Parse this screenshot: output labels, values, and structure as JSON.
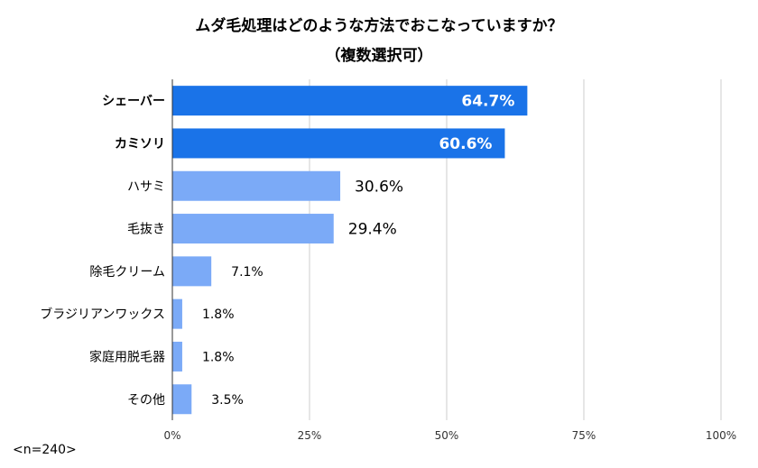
{
  "title": "ムダ毛処理はどのような方法でおこなっていますか？",
  "subtitle": "（複数選択可）",
  "note": "<n=240>",
  "chart_data": {
    "type": "bar",
    "orientation": "horizontal",
    "title": "ムダ毛処理はどのような方法でおこなっていますか？",
    "subtitle": "（複数選択可）",
    "categories": [
      "シェーバー",
      "カミソリ",
      "ハサミ",
      "毛抜き",
      "除毛クリーム",
      "ブラジリアンワックス",
      "家庭用脱毛器",
      "その他"
    ],
    "values": [
      64.7,
      60.6,
      30.6,
      29.4,
      7.1,
      1.8,
      1.8,
      3.5
    ],
    "value_labels": [
      "64.7%",
      "60.6%",
      "30.6%",
      "29.4%",
      "7.1%",
      "1.8%",
      "1.8%",
      "3.5%"
    ],
    "highlight": [
      true,
      true,
      false,
      false,
      false,
      false,
      false,
      false
    ],
    "xlim": [
      0,
      100
    ],
    "xticks": [
      0,
      25,
      50,
      75,
      100
    ],
    "xtick_labels": [
      "0%",
      "25%",
      "50%",
      "75%",
      "100%"
    ],
    "grid": true,
    "colors": {
      "highlight": "#1a73e8",
      "normal": "#7baaf7",
      "grid": "#cccccc",
      "axis": "#333333"
    }
  }
}
